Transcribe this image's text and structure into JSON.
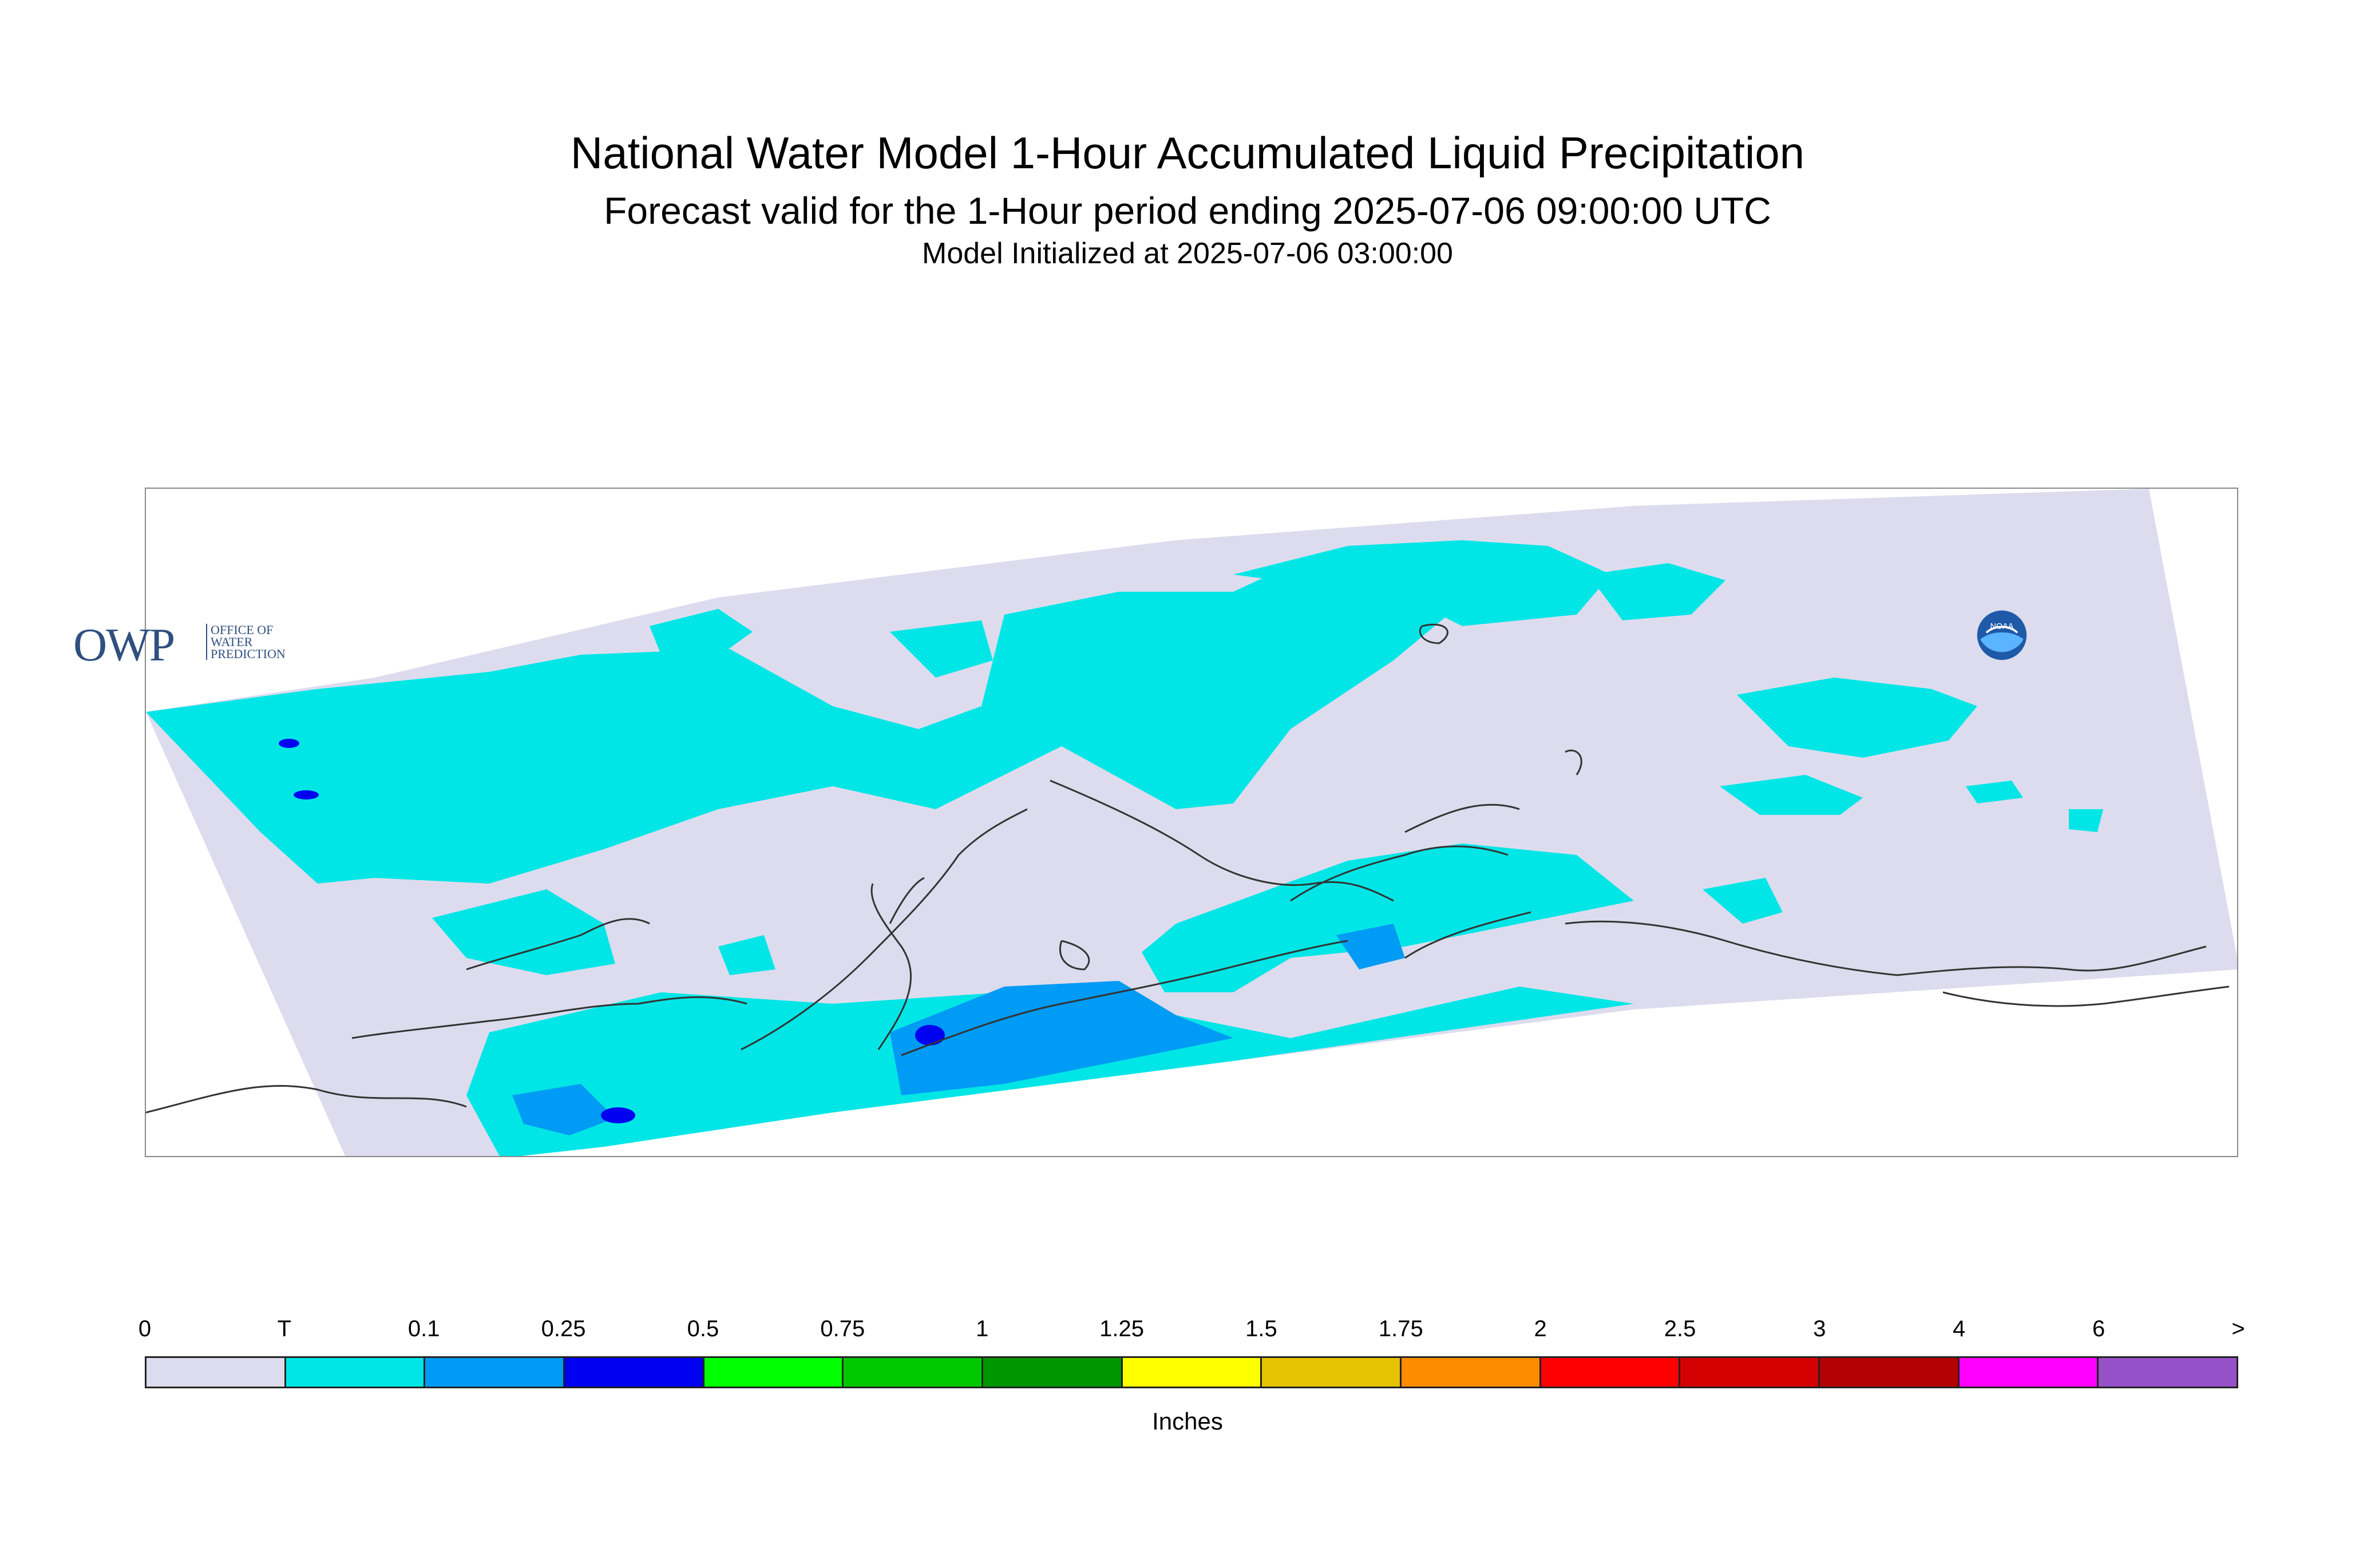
{
  "title": "National Water Model 1-Hour Accumulated Liquid Precipitation",
  "subtitle": "Forecast valid for the 1-Hour period ending 2025-07-06 09:00:00 UTC",
  "init_text": "Model Initialized at 2025-07-06 03:00:00",
  "logos": {
    "owp_mark": "OWP",
    "owp_text": [
      "OFFICE OF",
      "WATER",
      "PREDICTION"
    ],
    "noaa_text": "NOAA"
  },
  "legend": {
    "unit": "Inches",
    "boundaries": [
      "0",
      "T",
      "0.1",
      "0.25",
      "0.5",
      "0.75",
      "1",
      "1.25",
      "1.5",
      "1.75",
      "2",
      "2.5",
      "3",
      "4",
      "6",
      ">"
    ],
    "colors": [
      "#dcdcee",
      "#00e6e6",
      "#009bf5",
      "#0000f0",
      "#00ff00",
      "#00c800",
      "#009600",
      "#ffff00",
      "#e6c300",
      "#ff8c00",
      "#ff0000",
      "#d20000",
      "#b40000",
      "#ff00ff",
      "#9650c8"
    ]
  },
  "map": {
    "colors": {
      "background_domain": "#dcdcee",
      "trace": "#00e6e6",
      "light": "#009bf5",
      "moderate": "#0000f0",
      "coastline": "#333333"
    }
  }
}
